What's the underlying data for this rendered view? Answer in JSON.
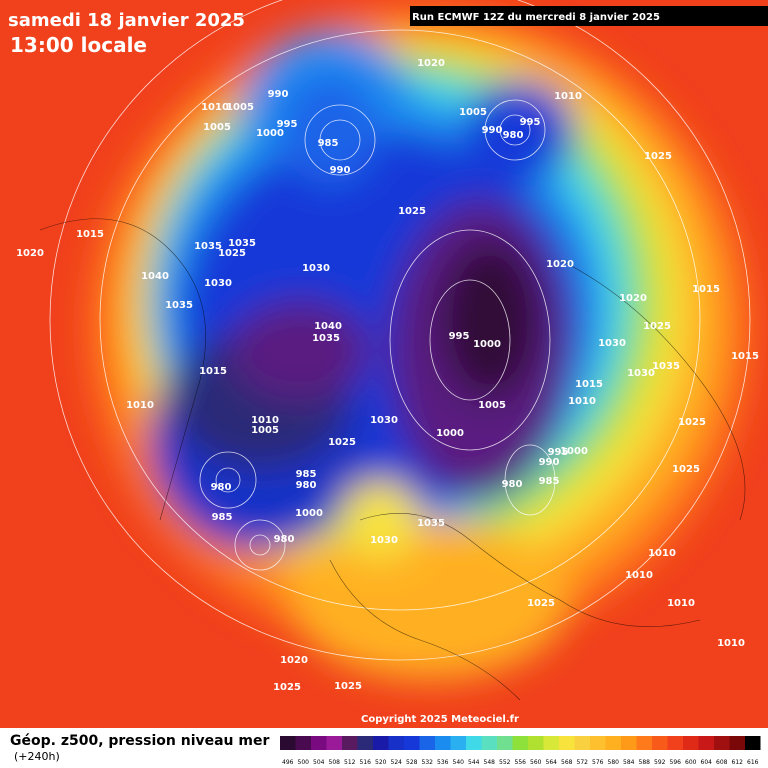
{
  "header": {
    "date": "samedi 18 janvier 2025",
    "time": "13:00 locale",
    "run": "Run ECMWF 12Z du mercredi 8 janvier 2025"
  },
  "footer": {
    "copyright": "Copyright 2025 Meteociel.fr",
    "title": "Géop. z500, pression niveau mer",
    "lead": "(+240h)",
    "scale_labels": [
      496,
      500,
      504,
      508,
      512,
      516,
      520,
      524,
      528,
      532,
      536,
      540,
      544,
      548,
      552,
      556,
      560,
      564,
      568,
      572,
      576,
      580,
      584,
      588,
      592,
      596,
      600,
      604,
      608,
      612,
      616
    ],
    "scale_colors": [
      "#2a0a30",
      "#4a0a50",
      "#7a0a80",
      "#9a1a9a",
      "#5a1a60",
      "#2a2a78",
      "#1a1aa8",
      "#1630c8",
      "#1638d8",
      "#1a64e8",
      "#1a8cf0",
      "#2ab0f0",
      "#3fd9e8",
      "#5ae0c0",
      "#70e090",
      "#8ee03a",
      "#b0e030",
      "#d8e838",
      "#f7e33c",
      "#f8d040",
      "#ffc030",
      "#ffb020",
      "#ff9a18",
      "#ff7a1a",
      "#f85a1a",
      "#f0401c",
      "#e02a18",
      "#c81818",
      "#a01010",
      "#7a0808",
      "#000000"
    ]
  },
  "pressure_labels": [
    1020,
    1010,
    1005,
    990,
    995,
    1005,
    1000,
    985,
    990,
    1005,
    1010,
    995,
    990,
    980,
    1025,
    1025,
    1015,
    1035,
    1035,
    1025,
    1020,
    1030,
    1040,
    1030,
    1020,
    1035,
    1040,
    1035,
    995,
    1000,
    1015,
    1020,
    1025,
    1030,
    1015,
    1015,
    1010,
    1010,
    1010,
    1005,
    1030,
    1005,
    1000,
    1025,
    995,
    1000,
    990,
    985,
    980,
    980,
    985,
    980,
    1025,
    1025,
    985,
    1000,
    1035,
    1030,
    980,
    1010,
    1010,
    1025,
    1010,
    1020,
    1010,
    1025,
    1025,
    1015,
    1035,
    1030
  ]
}
